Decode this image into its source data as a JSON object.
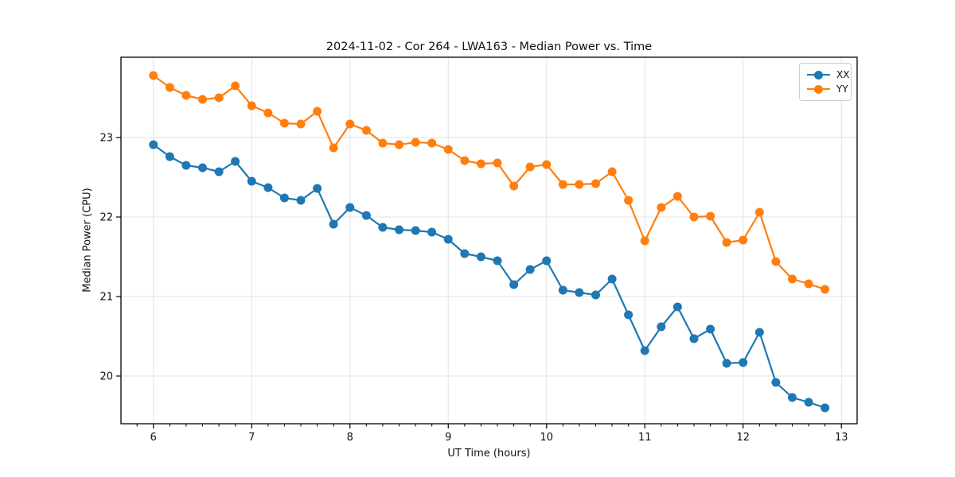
{
  "chart_data": {
    "type": "line",
    "title": "2024-11-02 - Cor 264 - LWA163 - Median Power vs. Time",
    "xlabel": "UT Time (hours)",
    "ylabel": "Median Power (CPU)",
    "xlim": [
      5.67,
      13.16
    ],
    "ylim": [
      19.4,
      24.01
    ],
    "x_major_ticks": [
      6,
      7,
      8,
      9,
      10,
      11,
      12,
      13
    ],
    "x_minor_tick_step": 0.166667,
    "y_major_ticks": [
      20,
      21,
      22,
      23
    ],
    "grid": true,
    "grid_color": "#e3e3e3",
    "legend_position": "upper right",
    "x": [
      6.0,
      6.167,
      6.333,
      6.5,
      6.667,
      6.833,
      7.0,
      7.167,
      7.333,
      7.5,
      7.667,
      7.833,
      8.0,
      8.167,
      8.333,
      8.5,
      8.667,
      8.833,
      9.0,
      9.167,
      9.333,
      9.5,
      9.667,
      9.833,
      10.0,
      10.167,
      10.333,
      10.5,
      10.667,
      10.833,
      11.0,
      11.167,
      11.333,
      11.5,
      11.667,
      11.833,
      12.0,
      12.167,
      12.333,
      12.5,
      12.667,
      12.833
    ],
    "series": [
      {
        "name": "XX",
        "color": "#1f77b4",
        "values": [
          22.91,
          22.76,
          22.65,
          22.62,
          22.57,
          22.7,
          22.45,
          22.37,
          22.24,
          22.21,
          22.36,
          21.91,
          22.12,
          22.02,
          21.87,
          21.84,
          21.83,
          21.81,
          21.72,
          21.54,
          21.5,
          21.45,
          21.15,
          21.34,
          21.45,
          21.08,
          21.05,
          21.02,
          21.22,
          20.77,
          20.32,
          20.62,
          20.87,
          20.47,
          20.59,
          20.16,
          20.17,
          20.55,
          19.92,
          19.73,
          19.67,
          19.6
        ]
      },
      {
        "name": "YY",
        "color": "#ff7f0e",
        "values": [
          23.78,
          23.63,
          23.53,
          23.48,
          23.5,
          23.65,
          23.4,
          23.31,
          23.18,
          23.17,
          23.33,
          22.87,
          23.17,
          23.09,
          22.93,
          22.91,
          22.94,
          22.93,
          22.85,
          22.71,
          22.67,
          22.68,
          22.39,
          22.63,
          22.66,
          22.41,
          22.41,
          22.42,
          22.57,
          22.21,
          21.7,
          22.12,
          22.26,
          22.0,
          22.01,
          21.68,
          21.71,
          22.06,
          21.44,
          21.22,
          21.16,
          21.09
        ]
      }
    ]
  }
}
